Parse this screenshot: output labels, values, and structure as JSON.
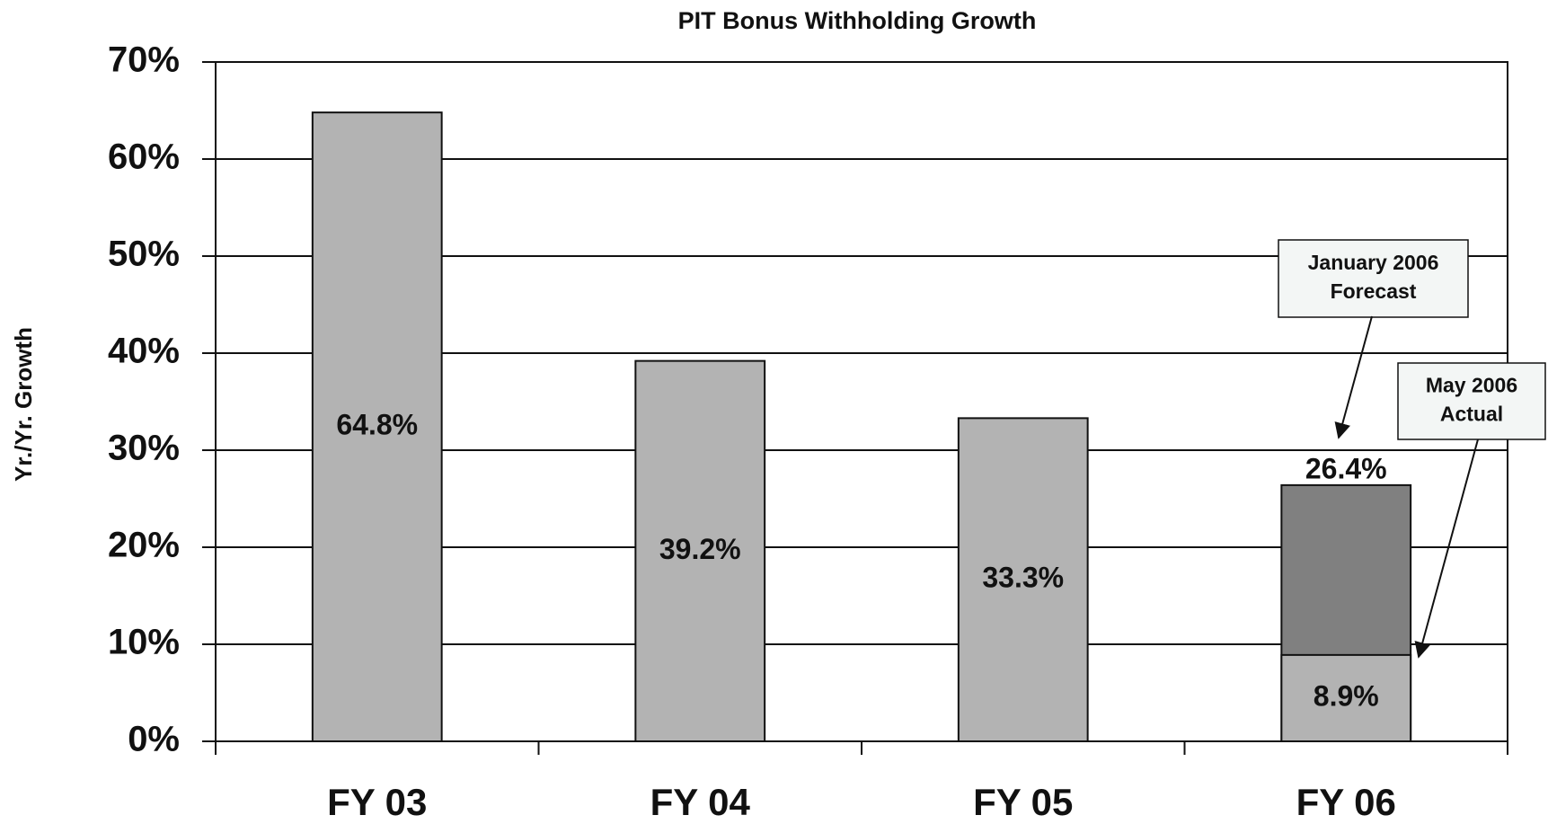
{
  "chart_data": {
    "type": "bar",
    "title": "PIT Bonus Withholding Growth",
    "y_label": "Yr./Yr. Growth",
    "categories": [
      "FY 03",
      "FY 04",
      "FY 05",
      "FY 06"
    ],
    "series": [
      {
        "color": "#b3b3b3",
        "values": [
          64.8,
          39.2,
          33.3,
          8.9
        ],
        "value_labels": [
          "64.8%",
          "39.2%",
          "33.3%",
          "8.9%"
        ]
      },
      {
        "color": "#808080",
        "values": [
          null,
          null,
          null,
          26.4
        ],
        "value_labels": [
          null,
          null,
          null,
          "26.4%"
        ]
      }
    ],
    "ylim": [
      0,
      70
    ],
    "yticks": [
      {
        "value": 0,
        "label": "0%"
      },
      {
        "value": 10,
        "label": "10%"
      },
      {
        "value": 20,
        "label": "20%"
      },
      {
        "value": 30,
        "label": "30%"
      },
      {
        "value": 40,
        "label": "40%"
      },
      {
        "value": 50,
        "label": "50%"
      },
      {
        "value": 60,
        "label": "60%"
      },
      {
        "value": 70,
        "label": "70%"
      }
    ],
    "grid": true,
    "annotations": [
      {
        "lines": [
          "January 2006",
          "Forecast"
        ]
      },
      {
        "lines": [
          "May 2006",
          "Actual"
        ]
      }
    ]
  }
}
